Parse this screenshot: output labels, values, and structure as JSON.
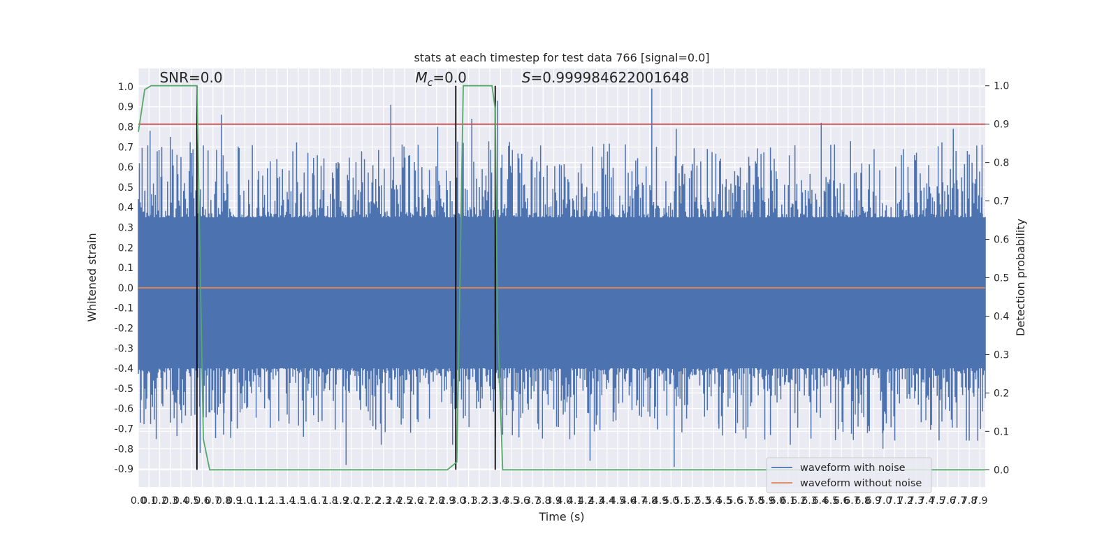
{
  "chart_data": {
    "type": "line",
    "title": "stats at each timestep for test data 766 [signal=0.0]",
    "xlabel": "Time (s)",
    "ylabel": "Whitened strain",
    "y2label": "Detection probability",
    "xlim": [
      0.0,
      7.95
    ],
    "ylim": [
      -0.99,
      1.09
    ],
    "y2lim": [
      -0.045,
      1.045
    ],
    "x_ticks": [
      "0.0",
      "0.1",
      "0.2",
      "0.3",
      "0.4",
      "0.5",
      "0.6",
      "0.7",
      "0.8",
      "0.9",
      "1.0",
      "1.1",
      "1.2",
      "1.3",
      "1.4",
      "1.5",
      "1.6",
      "1.7",
      "1.8",
      "1.9",
      "2.0",
      "2.1",
      "2.2",
      "2.3",
      "2.4",
      "2.5",
      "2.6",
      "2.7",
      "2.8",
      "2.9",
      "3.0",
      "3.1",
      "3.2",
      "3.3",
      "3.4",
      "3.5",
      "3.6",
      "3.7",
      "3.8",
      "3.9",
      "4.0",
      "4.1",
      "4.2",
      "4.3",
      "4.4",
      "4.5",
      "4.6",
      "4.7",
      "4.8",
      "4.9",
      "5.0",
      "5.1",
      "5.2",
      "5.3",
      "5.4",
      "5.5",
      "5.6",
      "5.7",
      "5.8",
      "5.9",
      "6.0",
      "6.1",
      "6.2",
      "6.3",
      "6.4",
      "6.5",
      "6.6",
      "6.7",
      "6.8",
      "6.9",
      "7.0",
      "7.1",
      "7.2",
      "7.3",
      "7.4",
      "7.5",
      "7.6",
      "7.7",
      "7.8",
      "7.9"
    ],
    "y_ticks": [
      "1.0",
      "0.9",
      "0.8",
      "0.7",
      "0.6",
      "0.5",
      "0.4",
      "0.3",
      "0.2",
      "0.1",
      "0.0",
      "-0.1",
      "-0.2",
      "-0.3",
      "-0.4",
      "-0.5",
      "-0.6",
      "-0.7",
      "-0.8",
      "-0.9"
    ],
    "y2_ticks": [
      "1.0",
      "0.9",
      "0.8",
      "0.7",
      "0.6",
      "0.5",
      "0.4",
      "0.3",
      "0.2",
      "0.1",
      "0.0"
    ],
    "annotations": [
      {
        "text": "SNR=0.0",
        "x": 0.2,
        "y": 1.02
      },
      {
        "text": "=0.0",
        "prefix_italic": "M",
        "sub": "c",
        "x": 2.6,
        "y": 1.02
      },
      {
        "text": "=0.999984622001648",
        "prefix_italic": "S",
        "x": 3.6,
        "y": 1.02
      }
    ],
    "threshold_line": {
      "y2": 0.9,
      "color": "#c44e52"
    },
    "vertical_lines": [
      0.55,
      2.98,
      3.35
    ],
    "noisy_waveform": {
      "name": "waveform with noise",
      "color": "#4c72b0",
      "band_low": -0.4,
      "band_high": 0.35,
      "peaks_pos": [
        [
          0.01,
          0.62
        ],
        [
          0.06,
          0.48
        ],
        [
          0.11,
          0.78
        ],
        [
          0.22,
          0.7
        ],
        [
          0.3,
          0.75
        ],
        [
          0.4,
          0.65
        ],
        [
          0.5,
          0.67
        ],
        [
          0.78,
          0.86
        ],
        [
          1.13,
          0.58
        ],
        [
          1.65,
          0.56
        ],
        [
          2.37,
          0.91
        ],
        [
          2.81,
          0.8
        ],
        [
          3.05,
          0.72
        ],
        [
          3.13,
          0.84
        ],
        [
          3.37,
          0.93
        ],
        [
          4.82,
          0.99
        ],
        [
          5.05,
          0.79
        ],
        [
          6.41,
          0.82
        ],
        [
          7.65,
          0.79
        ],
        [
          7.92,
          0.71
        ]
      ],
      "peaks_neg": [
        [
          0.02,
          -0.67
        ],
        [
          0.3,
          -0.67
        ],
        [
          0.58,
          -0.82
        ],
        [
          0.8,
          -0.73
        ],
        [
          1.55,
          -0.74
        ],
        [
          1.95,
          -0.88
        ],
        [
          2.28,
          -0.78
        ],
        [
          2.95,
          -0.78
        ],
        [
          3.42,
          -0.73
        ],
        [
          4.24,
          -0.86
        ],
        [
          5.03,
          -0.89
        ],
        [
          5.45,
          -0.7
        ],
        [
          6.12,
          -0.78
        ],
        [
          6.99,
          -0.8
        ],
        [
          7.88,
          -0.76
        ]
      ]
    },
    "clean_waveform": {
      "name": "waveform without noise",
      "color": "#dd8452",
      "value": 0.0
    },
    "probability": {
      "color": "#55a868",
      "x": [
        0.0,
        0.06,
        0.12,
        0.2,
        0.5,
        0.55,
        0.61,
        0.67,
        2.9,
        2.99,
        3.05,
        3.1,
        3.32,
        3.35,
        3.37,
        3.42,
        3.5,
        7.95
      ],
      "y": [
        0.88,
        0.99,
        1.0,
        1.0,
        1.0,
        1.0,
        0.08,
        0.0,
        0.0,
        0.02,
        1.0,
        1.0,
        1.0,
        0.94,
        0.4,
        0.0,
        0.0,
        0.0
      ]
    },
    "legend": {
      "position": "lower right"
    }
  }
}
